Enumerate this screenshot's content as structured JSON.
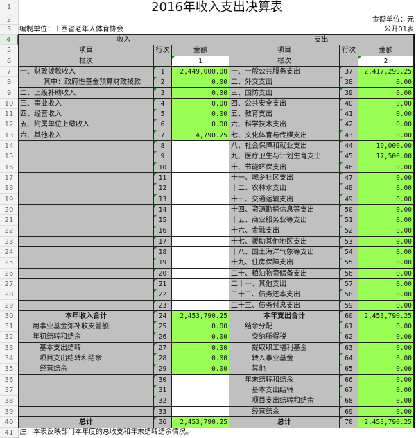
{
  "title": "2016年收入支出决算表",
  "unit": "金额单位：元",
  "compiler": "编制单位：山西省老年人体育协会",
  "form_no": "公开01表",
  "income_header": "收入",
  "expense_header": "支出",
  "col_item": "项目",
  "col_line": "行次",
  "col_amount": "金额",
  "col_index": "栏次",
  "income_col_no": "1",
  "expense_col_no": "2",
  "note": "注：本表反映部门本年度的总收支和年末结转结余情况。",
  "colors": {
    "green_fill": "#99ff55",
    "gray_fill": "#c0c0c0"
  },
  "rows": [
    {
      "r": "7",
      "l": "一、财政拨款收入",
      "ln": "1",
      "la": "2,449,000.00",
      "e": "一、一般公共服务支出",
      "en": "37",
      "ea": "2,417,290.25"
    },
    {
      "r": "8",
      "l": "其中：政府性基金预算财政拨款",
      "ln": "2",
      "la": "0.00",
      "e": "二、外交支出",
      "en": "38",
      "ea": "0.00"
    },
    {
      "r": "9",
      "l": "二、上级补助收入",
      "ln": "3",
      "la": "0.00",
      "e": "三、国防支出",
      "en": "39",
      "ea": "0.00"
    },
    {
      "r": "10",
      "l": "三、事业收入",
      "ln": "4",
      "la": "0.00",
      "e": "四、公共安全支出",
      "en": "40",
      "ea": "0.00"
    },
    {
      "r": "11",
      "l": "四、经营收入",
      "ln": "5",
      "la": "0.00",
      "e": "五、教育支出",
      "en": "41",
      "ea": "0.00"
    },
    {
      "r": "12",
      "l": "五、附属单位上缴收入",
      "ln": "6",
      "la": "0.00",
      "e": "六、科学技术支出",
      "en": "42",
      "ea": "0.00"
    },
    {
      "r": "13",
      "l": "六、其他收入",
      "ln": "7",
      "la": "4,790.25",
      "e": "七、文化体育与传媒支出",
      "en": "43",
      "ea": "0.00"
    },
    {
      "r": "14",
      "l": "",
      "ln": "8",
      "la": null,
      "e": "八、社会保障和就业支出",
      "en": "44",
      "ea": "19,000.00"
    },
    {
      "r": "15",
      "l": "",
      "ln": "9",
      "la": null,
      "e": "九、医疗卫生与计划生育支出",
      "en": "45",
      "ea": "17,500.00"
    },
    {
      "r": "16",
      "l": "",
      "ln": "10",
      "la": null,
      "e": "十、节能环保支出",
      "en": "46",
      "ea": "0.00"
    },
    {
      "r": "17",
      "l": "",
      "ln": "11",
      "la": null,
      "e": "十一、城乡社区支出",
      "en": "47",
      "ea": "0.00"
    },
    {
      "r": "18",
      "l": "",
      "ln": "12",
      "la": null,
      "e": "十二、农林水支出",
      "en": "48",
      "ea": "0.00"
    },
    {
      "r": "19",
      "l": "",
      "ln": "13",
      "la": null,
      "e": "十三、交通运输支出",
      "en": "49",
      "ea": "0.00"
    },
    {
      "r": "20",
      "l": "",
      "ln": "14",
      "la": null,
      "e": "十四、资源勘探信息等支出",
      "en": "50",
      "ea": "0.00"
    },
    {
      "r": "21",
      "l": "",
      "ln": "15",
      "la": null,
      "e": "十五、商业服务业等支出",
      "en": "51",
      "ea": "0.00"
    },
    {
      "r": "22",
      "l": "",
      "ln": "16",
      "la": null,
      "e": "十六、金融支出",
      "en": "52",
      "ea": "0.00"
    },
    {
      "r": "23",
      "l": "",
      "ln": "17",
      "la": null,
      "e": "十七、援助其他地区支出",
      "en": "53",
      "ea": "0.00"
    },
    {
      "r": "24",
      "l": "",
      "ln": "18",
      "la": null,
      "e": "十八、国土海洋气象等支出",
      "en": "54",
      "ea": "0.00"
    },
    {
      "r": "25",
      "l": "",
      "ln": "19",
      "la": null,
      "e": "十九、住房保障支出",
      "en": "55",
      "ea": "0.00"
    },
    {
      "r": "26",
      "l": "",
      "ln": "20",
      "la": null,
      "e": "二十、粮油物资储备支出",
      "en": "56",
      "ea": "0.00"
    },
    {
      "r": "27",
      "l": "",
      "ln": "21",
      "la": null,
      "e": "二十一、其他支出",
      "en": "57",
      "ea": "0.00"
    },
    {
      "r": "28",
      "l": "",
      "ln": "22",
      "la": null,
      "e": "二十二、债务还本支出",
      "en": "58",
      "ea": "0.00"
    },
    {
      "r": "29",
      "l": "",
      "ln": "23",
      "la": null,
      "e": "二十三、债务付息支出",
      "en": "59",
      "ea": "0.00"
    },
    {
      "r": "30",
      "l": "本年收入合计",
      "ln": "24",
      "la": "2,453,790.25",
      "e": "本年支出合计",
      "en": "60",
      "ea": "2,453,790.25"
    },
    {
      "r": "31",
      "l": "用事业基金弥补收支差额",
      "ln": "25",
      "la": "0.00",
      "e": "结余分配",
      "en": "61",
      "ea": "0.00"
    },
    {
      "r": "32",
      "l": "年初结转和结余",
      "ln": "26",
      "la": "0.00",
      "e": "交纳所得税",
      "en": "62",
      "ea": "0.00"
    },
    {
      "r": "33",
      "l": "基本支出结转",
      "ln": "27",
      "la": "0.00",
      "e": "提取职工福利基金",
      "en": "63",
      "ea": "0.00"
    },
    {
      "r": "34",
      "l": "项目支出结转和结余",
      "ln": "28",
      "la": "0.00",
      "e": "转入事业基金",
      "en": "64",
      "ea": "0.00"
    },
    {
      "r": "35",
      "l": "经营结余",
      "ln": "29",
      "la": "0.00",
      "e": "其他",
      "en": "65",
      "ea": "0.00"
    },
    {
      "r": "36",
      "l": "",
      "ln": "30",
      "la": null,
      "e": "年末结转和结余",
      "en": "66",
      "ea": "0.00"
    },
    {
      "r": "37",
      "l": "",
      "ln": "31",
      "la": null,
      "e": "基本支出结转",
      "en": "67",
      "ea": "0.00"
    },
    {
      "r": "38",
      "l": "",
      "ln": "32",
      "la": null,
      "e": "项目支出结转和结余",
      "en": "68",
      "ea": "0.00"
    },
    {
      "r": "39",
      "l": "",
      "ln": "33",
      "la": null,
      "e": "经营结余",
      "en": "69",
      "ea": "0.00"
    },
    {
      "r": "40",
      "l": "总计",
      "ln": "36",
      "la": "2,453,790.25",
      "e": "总计",
      "en": "70",
      "ea": "2,453,790.25"
    }
  ],
  "row_numbers": [
    "1",
    "2",
    "3",
    "4",
    "5",
    "6",
    "7",
    "8",
    "9",
    "10",
    "11",
    "12",
    "13",
    "14",
    "15",
    "16",
    "17",
    "18",
    "19",
    "20",
    "21",
    "22",
    "23",
    "24",
    "25",
    "26",
    "27",
    "28",
    "29",
    "30",
    "31",
    "32",
    "33",
    "34",
    "35",
    "36",
    "37",
    "38",
    "39",
    "40",
    "41"
  ]
}
